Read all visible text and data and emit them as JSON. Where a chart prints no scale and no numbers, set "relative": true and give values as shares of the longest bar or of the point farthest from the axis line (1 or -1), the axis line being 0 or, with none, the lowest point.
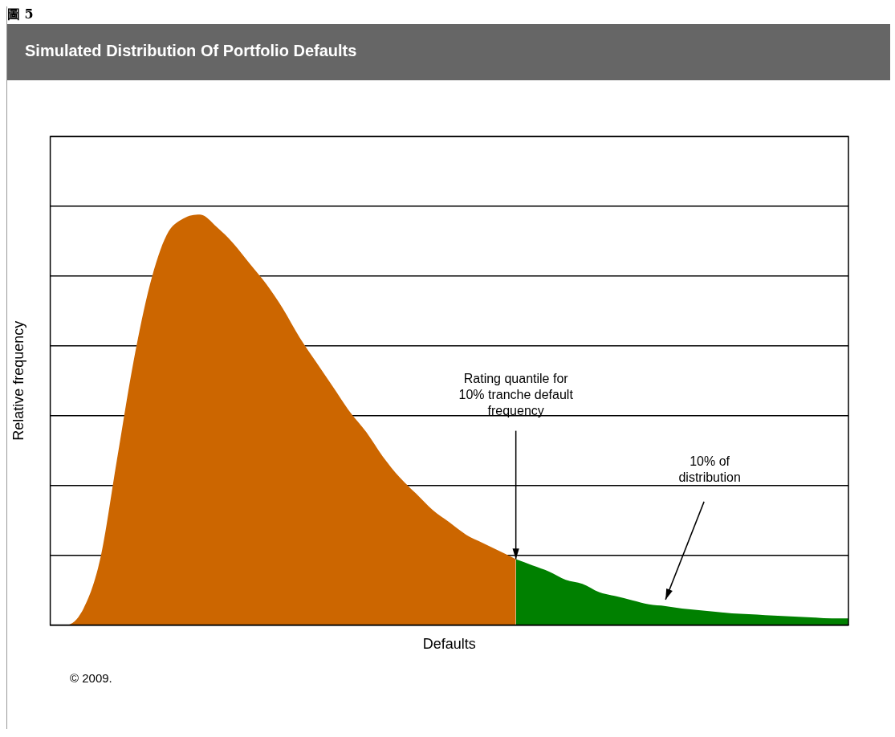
{
  "chart_data": {
    "type": "area",
    "title": "Simulated Distribution  Of Portfolio Defaults",
    "xlabel": "Defaults",
    "ylabel": "Relative frequency",
    "relative": true,
    "grid": "y",
    "legend": false,
    "categories": [
      null,
      null,
      null,
      null,
      null,
      null,
      null,
      null,
      null,
      null,
      null,
      null,
      null,
      null,
      null,
      null,
      null,
      null,
      null,
      null,
      null,
      null,
      null,
      null,
      null,
      null,
      null,
      null,
      null,
      null,
      null,
      null,
      null,
      null,
      null,
      null,
      null,
      null,
      null,
      null,
      null,
      null,
      null,
      null,
      null,
      null,
      null,
      null,
      null
    ],
    "series": [
      {
        "color": "#cc6600",
        "values": [
          0,
          0,
          0.04,
          0.16,
          0.4,
          0.64,
          0.83,
          0.95,
          0.99,
          1,
          0.97,
          0.93,
          0.88,
          0.83,
          0.77,
          0.7,
          0.64,
          0.58,
          0.52,
          0.47,
          0.41,
          0.36,
          0.32,
          0.28,
          0.25,
          0.22,
          0.2,
          0.18,
          0.16,
          null,
          null,
          null,
          null,
          null,
          null,
          null,
          null,
          null,
          null,
          null,
          null,
          null,
          null,
          null,
          null,
          null,
          null,
          null,
          null
        ]
      },
      {
        "color": "#008000",
        "values": [
          null,
          null,
          null,
          null,
          null,
          null,
          null,
          null,
          null,
          null,
          null,
          null,
          null,
          null,
          null,
          null,
          null,
          null,
          null,
          null,
          null,
          null,
          null,
          null,
          null,
          null,
          null,
          null,
          0.16,
          0.145,
          0.13,
          0.11,
          0.1,
          0.08,
          0.07,
          0.06,
          0.05,
          0.046,
          0.04,
          0.036,
          0.032,
          0.028,
          0.026,
          0.024,
          0.022,
          0.02,
          0.018,
          0.016,
          0.016
        ]
      }
    ],
    "annotations": [
      "圖 5",
      "Rating quantile for 10% tranche default frequency",
      "10% of distribution",
      "© 2009."
    ]
  }
}
